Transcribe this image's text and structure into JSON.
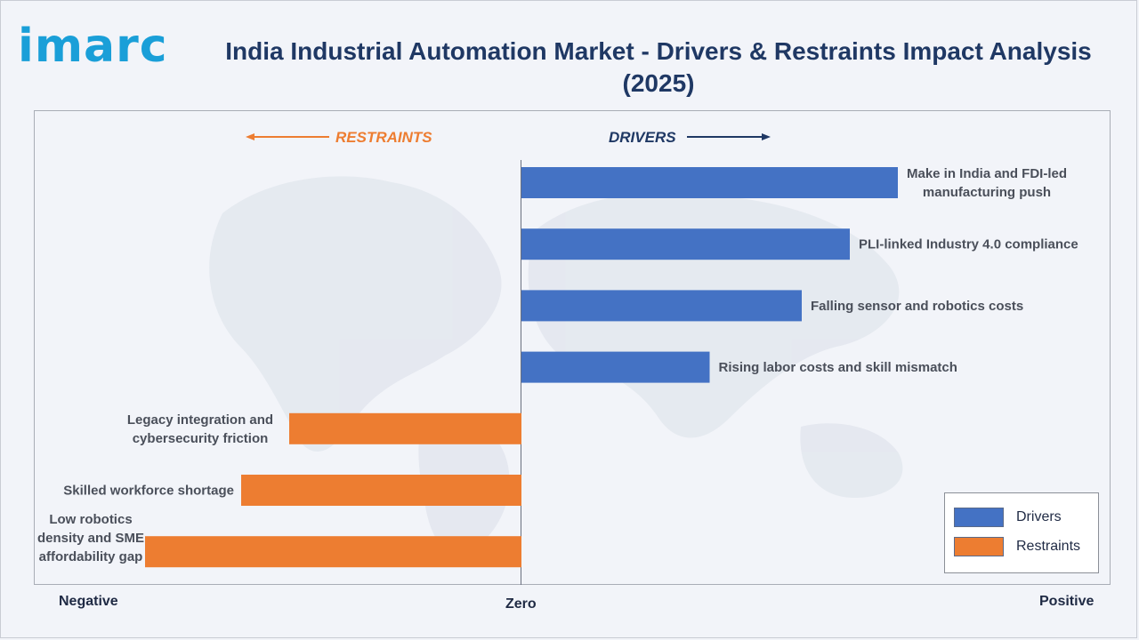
{
  "brand": {
    "logo_text": "imarc"
  },
  "title": "India Industrial Automation Market - Drivers & Restraints Impact Analysis (2025)",
  "direction_labels": {
    "restraints": "RESTRAINTS",
    "drivers": "DRIVERS"
  },
  "axis_labels": {
    "negative": "Negative",
    "zero": "Zero",
    "positive": "Positive"
  },
  "colors": {
    "drivers": "#4472c4",
    "restraints": "#ed7d31",
    "title": "#1f3864",
    "logo": "#1a9fd8"
  },
  "legend": [
    {
      "label": "Drivers",
      "color": "#4472c4"
    },
    {
      "label": "Restraints",
      "color": "#ed7d31"
    }
  ],
  "chart_data": {
    "type": "bar",
    "orientation": "horizontal",
    "title": "India Industrial Automation Market - Drivers & Restraints Impact Analysis (2025)",
    "xlabel": "",
    "ylabel": "",
    "xlim": [
      -1,
      1
    ],
    "legend_position": "bottom-right",
    "categories": [
      "Make in India and FDI-led manufacturing push",
      "PLI-linked Industry 4.0 compliance",
      "Falling sensor and robotics costs",
      "Rising labor costs and skill mismatch",
      "Legacy integration and cybersecurity friction",
      "Skilled workforce shortage",
      "Low robotics density and SME affordability gap"
    ],
    "series": [
      {
        "name": "Drivers",
        "values": [
          0.94,
          0.82,
          0.7,
          0.47,
          null,
          null,
          null
        ]
      },
      {
        "name": "Restraints",
        "values": [
          null,
          null,
          null,
          null,
          -0.58,
          -0.7,
          -0.94
        ]
      }
    ]
  }
}
